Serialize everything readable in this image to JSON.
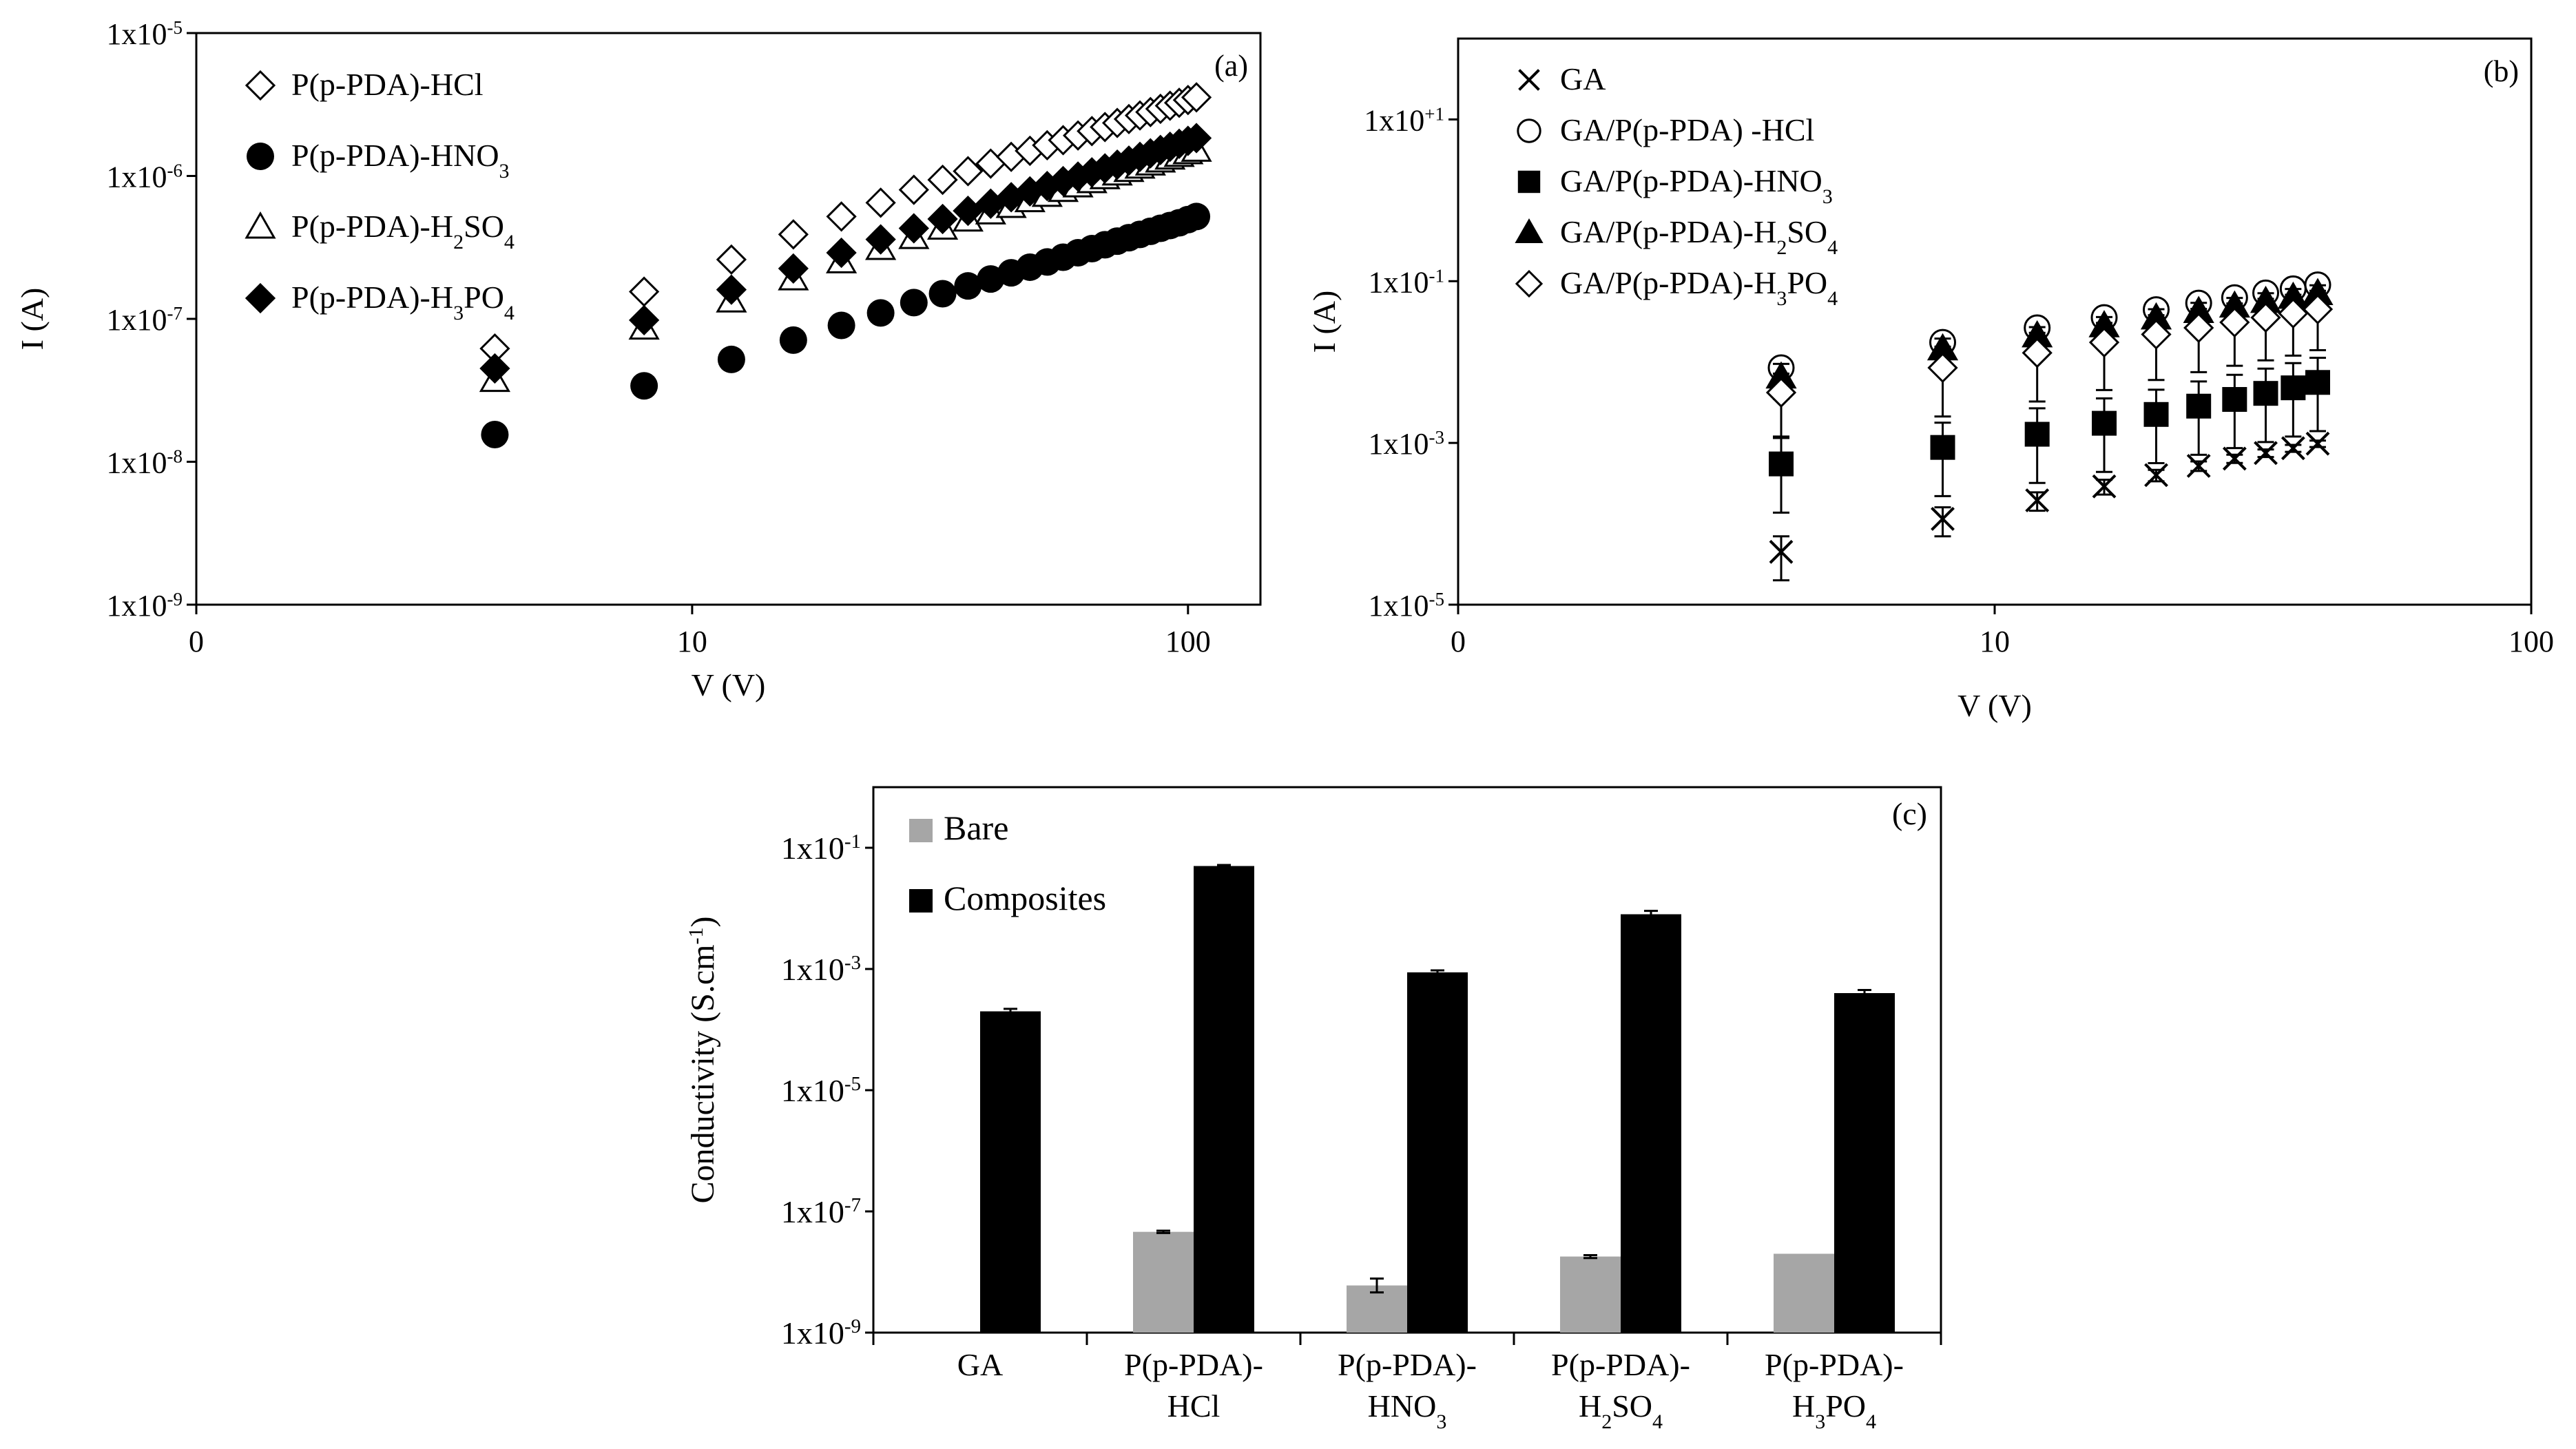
{
  "chart_data": [
    {
      "panel": "(a)",
      "type": "scatter",
      "xscale": "log",
      "yscale": "log",
      "xlabel": "V (V)",
      "ylabel": "I (A)",
      "xlim": [
        1,
        140
      ],
      "ylim": [
        1e-09,
        1e-05
      ],
      "xticks": [
        {
          "value": 1,
          "label": "0"
        },
        {
          "value": 10,
          "label": "10"
        },
        {
          "value": 100,
          "label": "100"
        }
      ],
      "yticks": [
        {
          "value": 1e-09,
          "base": "1x10",
          "exp": "-9"
        },
        {
          "value": 1e-08,
          "base": "1x10",
          "exp": "-8"
        },
        {
          "value": 1e-07,
          "base": "1x10",
          "exp": "-7"
        },
        {
          "value": 1e-06,
          "base": "1x10",
          "exp": "-6"
        },
        {
          "value": 1e-05,
          "base": "1x10",
          "exp": "-5"
        }
      ],
      "legend_position": "top-left",
      "x": [
        4,
        8,
        12,
        16,
        20,
        24,
        28,
        32,
        36,
        40,
        44,
        48,
        52,
        56,
        60,
        64,
        68,
        72,
        76,
        80,
        84,
        88,
        92,
        96,
        100,
        104
      ],
      "series": [
        {
          "name": "P(p-PDA)-HCl",
          "label": "P(p-PDA)-HCl",
          "sub": "",
          "label_end": "",
          "marker": "diamond-open",
          "values": [
            6.2e-08,
            1.55e-07,
            2.6e-07,
            3.9e-07,
            5.2e-07,
            6.5e-07,
            8e-07,
            9.4e-07,
            1.08e-06,
            1.22e-06,
            1.36e-06,
            1.5e-06,
            1.64e-06,
            1.78e-06,
            1.92e-06,
            2.06e-06,
            2.2e-06,
            2.35e-06,
            2.5e-06,
            2.65e-06,
            2.8e-06,
            2.95e-06,
            3.1e-06,
            3.25e-06,
            3.4e-06,
            3.55e-06
          ]
        },
        {
          "name": "P(p-PDA)-HNO3",
          "label": "P(p-PDA)-HNO",
          "sub": "3",
          "label_end": "",
          "marker": "circle-filled",
          "values": [
            1.55e-08,
            3.4e-08,
            5.2e-08,
            7.1e-08,
            9e-08,
            1.1e-07,
            1.3e-07,
            1.5e-07,
            1.7e-07,
            1.9e-07,
            2.1e-07,
            2.3e-07,
            2.5e-07,
            2.7e-07,
            2.9e-07,
            3.1e-07,
            3.3e-07,
            3.5e-07,
            3.7e-07,
            3.9e-07,
            4.1e-07,
            4.3e-07,
            4.5e-07,
            4.7e-07,
            4.95e-07,
            5.2e-07
          ]
        },
        {
          "name": "P(p-PDA)-H2SO4",
          "label": "P(p-PDA)-H",
          "sub": "2",
          "label_end": "SO",
          "sub2": "4",
          "marker": "triangle-open",
          "values": [
            3.7e-08,
            8.6e-08,
            1.33e-07,
            1.9e-07,
            2.5e-07,
            3.1e-07,
            3.7e-07,
            4.3e-07,
            4.9e-07,
            5.5e-07,
            6.1e-07,
            6.7e-07,
            7.3e-07,
            7.9e-07,
            8.5e-07,
            9.1e-07,
            9.7e-07,
            1.03e-06,
            1.09e-06,
            1.15e-06,
            1.21e-06,
            1.27e-06,
            1.33e-06,
            1.39e-06,
            1.45e-06,
            1.51e-06
          ]
        },
        {
          "name": "P(p-PDA)-H3PO4",
          "label": "P(p-PDA)-H",
          "sub": "3",
          "label_end": "PO",
          "sub2": "4",
          "marker": "diamond-filled",
          "values": [
            4.5e-08,
            9.8e-08,
            1.6e-07,
            2.25e-07,
            2.9e-07,
            3.6e-07,
            4.3e-07,
            5e-07,
            5.7e-07,
            6.4e-07,
            7.1e-07,
            7.8e-07,
            8.5e-07,
            9.2e-07,
            9.9e-07,
            1.06e-06,
            1.13e-06,
            1.2e-06,
            1.28e-06,
            1.36e-06,
            1.44e-06,
            1.52e-06,
            1.6e-06,
            1.68e-06,
            1.76e-06,
            1.84e-06
          ]
        }
      ]
    },
    {
      "panel": "(b)",
      "type": "scatter",
      "xscale": "log",
      "yscale": "log",
      "xlabel": "V (V)",
      "ylabel": "I (A)",
      "xlim": [
        1,
        100
      ],
      "ylim": [
        1e-05,
        100
      ],
      "xticks": [
        {
          "value": 1,
          "label": "0"
        },
        {
          "value": 10,
          "label": "10"
        },
        {
          "value": 100,
          "label": "100"
        }
      ],
      "yticks": [
        {
          "value": 1e-05,
          "base": "1x10",
          "exp": "-5"
        },
        {
          "value": 0.001,
          "base": "1x10",
          "exp": "-3"
        },
        {
          "value": 0.1,
          "base": "1x10",
          "exp": "-1"
        },
        {
          "value": 10,
          "base": "1x10",
          "exp": "+1"
        }
      ],
      "legend_position": "top-left",
      "x": [
        4,
        8,
        12,
        16,
        20,
        24,
        28,
        32,
        36,
        40
      ],
      "series": [
        {
          "name": "GA",
          "label": "GA",
          "sub": "",
          "label_end": "",
          "marker": "x",
          "values": [
            4.5e-05,
            0.000115,
            0.000195,
            0.00029,
            0.0004,
            0.00052,
            0.00064,
            0.00075,
            0.00086,
            0.00098
          ],
          "err": [
            2.5e-05,
            4.5e-05,
            5e-05,
            6e-05,
            6.5e-05,
            7e-05,
            7.5e-05,
            8e-05,
            8.5e-05,
            9e-05
          ]
        },
        {
          "name": "GA/P(p-PDA)-HCl",
          "label": "GA/P(p-PDA) -HCl",
          "sub": "",
          "label_end": "",
          "marker": "circle-open",
          "values": [
            0.0085,
            0.0175,
            0.0265,
            0.0355,
            0.0445,
            0.0535,
            0.0625,
            0.0715,
            0.0805,
            0.09
          ],
          "err": [
            0.0,
            0.0,
            0.0,
            0.0,
            0.0,
            0.0,
            0.0,
            0.0,
            0.0,
            0.0
          ]
        },
        {
          "name": "GA/P(p-PDA)-HNO3",
          "label": "GA/P(p-PDA)-HNO",
          "sub": "3",
          "label_end": "",
          "marker": "square-filled",
          "values": [
            0.00055,
            0.00088,
            0.00128,
            0.00175,
            0.00225,
            0.00285,
            0.00345,
            0.0041,
            0.0048,
            0.0056
          ],
          "err": [
            0.0006,
            0.0009,
            0.0014,
            0.0018,
            0.0023,
            0.0029,
            0.0035,
            0.0042,
            0.0049,
            0.0057
          ]
        },
        {
          "name": "GA/P(p-PDA)-H2SO4",
          "label": "GA/P(p-PDA)-H",
          "sub": "2",
          "label_end": "SO",
          "sub2": "4",
          "marker": "triangle-filled",
          "values": [
            0.0065,
            0.0145,
            0.021,
            0.028,
            0.035,
            0.042,
            0.049,
            0.056,
            0.063,
            0.07
          ],
          "err": [
            0.003,
            0.005,
            0.006,
            0.008,
            0.01,
            0.012,
            0.013,
            0.015,
            0.017,
            0.019
          ]
        },
        {
          "name": "GA/P(p-PDA)-H3PO4",
          "label": "GA/P(p-PDA)-H",
          "sub": "3",
          "label_end": "PO",
          "sub2": "4",
          "marker": "diamond-open",
          "values": [
            0.0042,
            0.0085,
            0.013,
            0.0175,
            0.022,
            0.0265,
            0.031,
            0.0355,
            0.04,
            0.045
          ],
          "err": [
            0.003,
            0.007,
            0.01,
            0.013,
            0.016,
            0.019,
            0.022,
            0.025,
            0.028,
            0.031
          ]
        }
      ]
    },
    {
      "panel": "(c)",
      "type": "bar",
      "yscale": "log",
      "ylabel": "Conductivity (S.cm",
      "ylabel_sup": "-1",
      "ylabel_end": ")",
      "ylim": [
        1e-09,
        1
      ],
      "yticks": [
        {
          "value": 1e-09,
          "base": "1x10",
          "exp": "-9"
        },
        {
          "value": 1e-07,
          "base": "1x10",
          "exp": "-7"
        },
        {
          "value": 1e-05,
          "base": "1x10",
          "exp": "-5"
        },
        {
          "value": 0.001,
          "base": "1x10",
          "exp": "-3"
        },
        {
          "value": 0.1,
          "base": "1x10",
          "exp": "-1"
        }
      ],
      "categories": [
        {
          "line1": "GA",
          "line2": "",
          "line2_sub": "",
          "line2_end": "",
          "line2_sub2": ""
        },
        {
          "line1": "P(p-PDA)-",
          "line2": "HCl",
          "line2_sub": "",
          "line2_end": "",
          "line2_sub2": ""
        },
        {
          "line1": "P(p-PDA)-",
          "line2": "HNO",
          "line2_sub": "3",
          "line2_end": "",
          "line2_sub2": ""
        },
        {
          "line1": "P(p-PDA)-",
          "line2": "H",
          "line2_sub": "2",
          "line2_end": "SO",
          "line2_sub2": "4"
        },
        {
          "line1": "P(p-PDA)-",
          "line2": "H",
          "line2_sub": "3",
          "line2_end": "PO",
          "line2_sub2": "4"
        }
      ],
      "legend_position": "top-left",
      "series": [
        {
          "name": "Bare",
          "color": "#a6a6a6",
          "values": [
            null,
            4.6e-08,
            6e-09,
            1.8e-08,
            2e-08
          ],
          "err_low": [
            null,
            4.4e-08,
            4.6e-09,
            1.7e-08,
            null
          ],
          "err_high": [
            null,
            4.8e-08,
            7.8e-09,
            1.9e-08,
            null
          ]
        },
        {
          "name": "Composites",
          "color": "#000000",
          "values": [
            0.0002,
            0.05,
            0.00088,
            0.008,
            0.0004
          ],
          "err_low": [
            0.00019,
            0.048,
            0.00084,
            0.0076,
            0.00037
          ],
          "err_high": [
            0.00022,
            0.052,
            0.00095,
            0.0091,
            0.00045
          ]
        }
      ]
    }
  ]
}
